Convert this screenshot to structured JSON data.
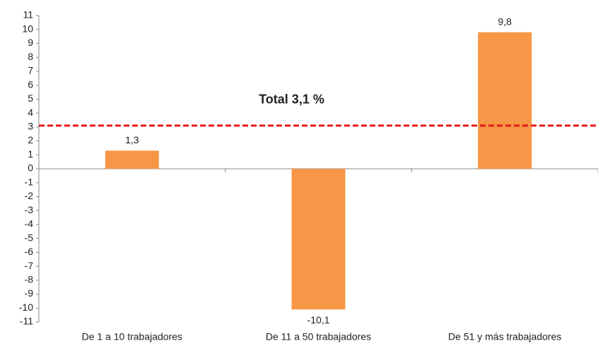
{
  "chart_data": {
    "type": "bar",
    "categories": [
      "De 1 a 10 trabajadores",
      "De 11 a 50 trabajadores",
      "De 51 y más trabajadores"
    ],
    "values": [
      1.3,
      -10.1,
      9.8
    ],
    "value_labels": [
      "1,3",
      "-10,1",
      "9,8"
    ],
    "color": "#f79646",
    "ylim": [
      -11,
      11
    ],
    "yticks": [
      -11,
      -10,
      -9,
      -8,
      -7,
      -6,
      -5,
      -4,
      -3,
      -2,
      -1,
      0,
      1,
      2,
      3,
      4,
      5,
      6,
      7,
      8,
      9,
      10,
      11
    ],
    "grid": false,
    "reference_line": {
      "value": 3.1,
      "label": "Total 3,1 %",
      "color": "#e8191c"
    }
  }
}
